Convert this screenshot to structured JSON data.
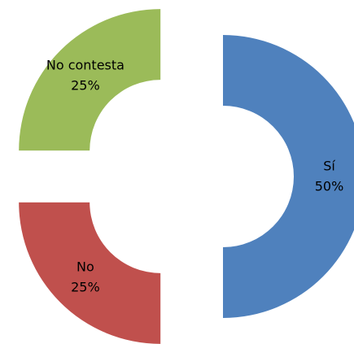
{
  "chart_data": {
    "type": "donut",
    "categories": [
      "Sí",
      "No",
      "No contesta"
    ],
    "values": [
      50,
      25,
      25
    ],
    "value_labels": [
      "50%",
      "25%",
      "25%"
    ],
    "colors": [
      "#4f81bd",
      "#c0504d",
      "#9bbb59"
    ]
  }
}
